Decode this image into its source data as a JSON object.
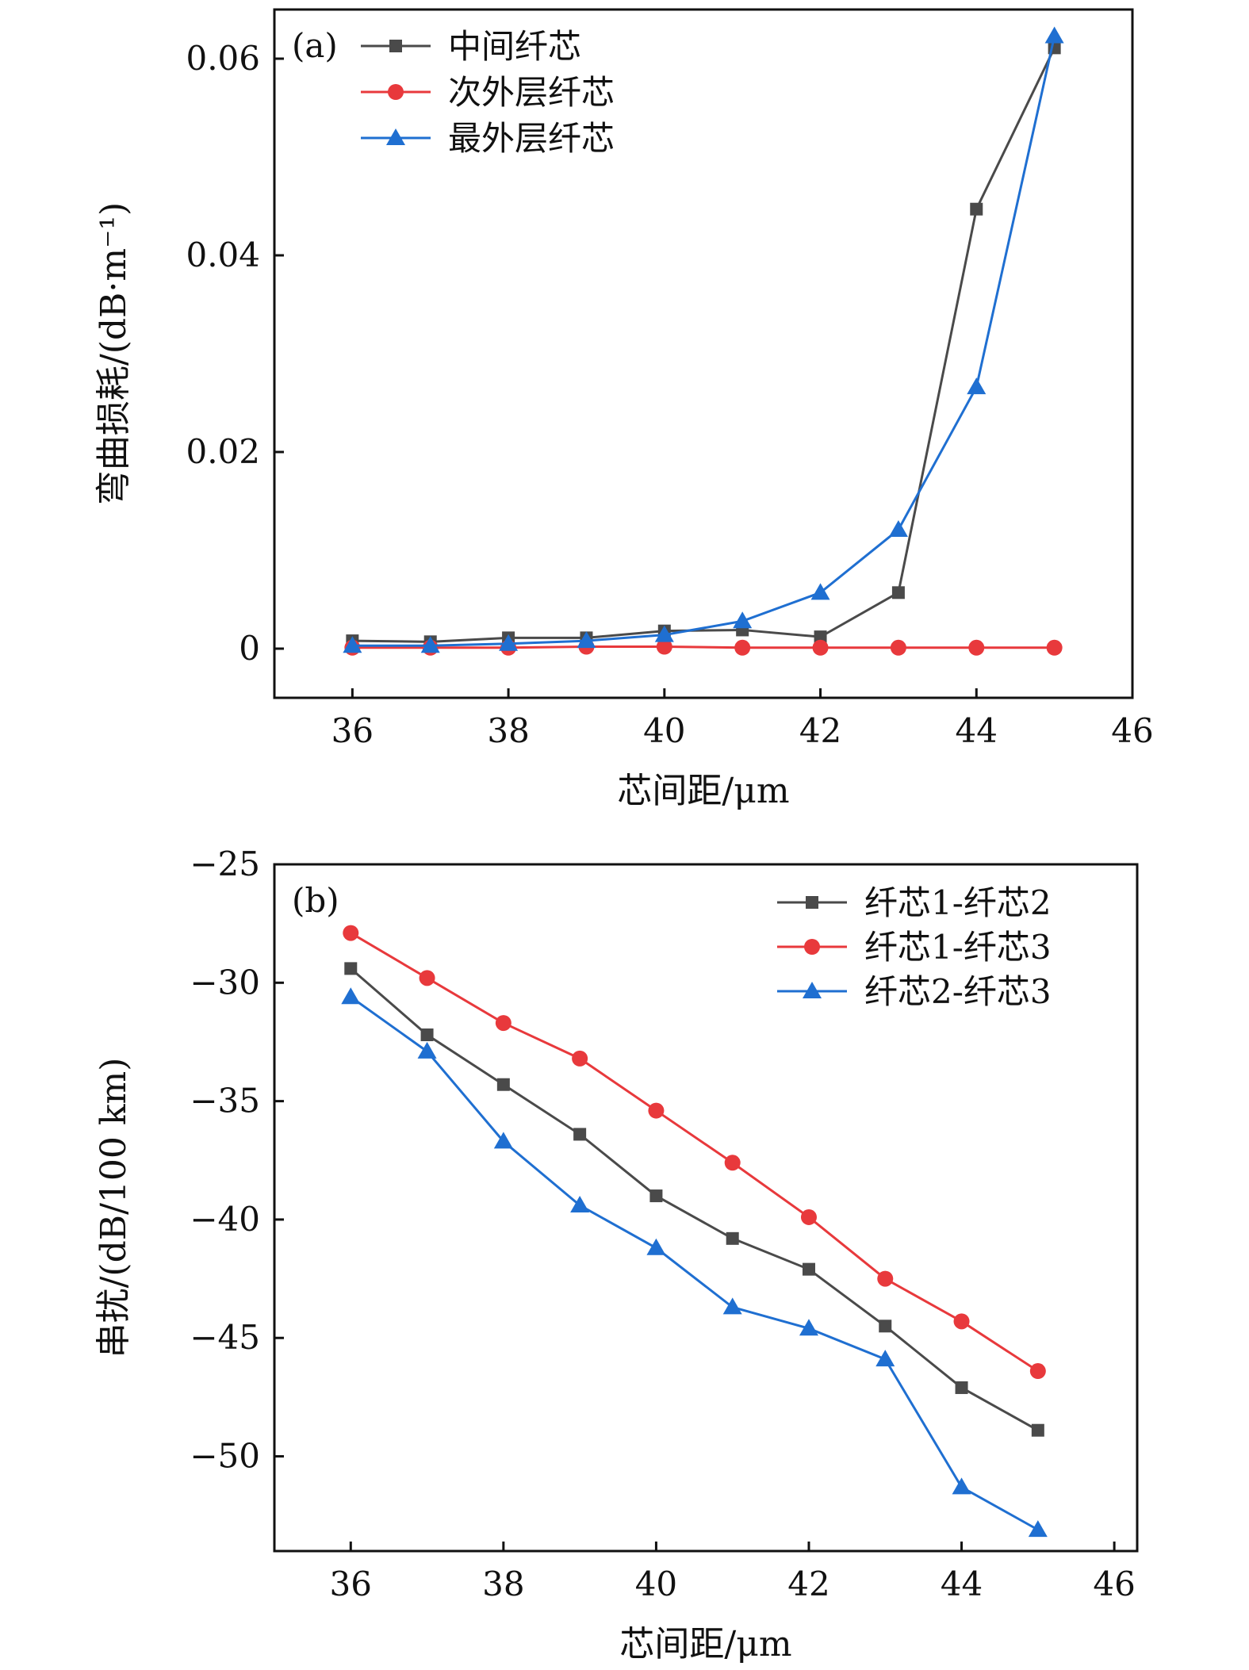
{
  "chart_data": [
    {
      "type": "line",
      "panel_label": "(a)",
      "xlabel": "芯间距/μm",
      "ylabel": "弯曲损耗/(dB·m⁻¹)",
      "xlim": [
        35,
        46
      ],
      "ylim": [
        -0.005,
        0.065
      ],
      "xticks": [
        36,
        38,
        40,
        42,
        44,
        46
      ],
      "yticks": [
        0,
        0.02,
        0.04,
        0.06
      ],
      "xtick_labels": [
        "36",
        "38",
        "40",
        "42",
        "44",
        "46"
      ],
      "ytick_labels": [
        "0",
        "0.02",
        "0.04",
        "0.06"
      ],
      "grid": false,
      "legend_position": "top-left",
      "series": [
        {
          "name": "中间纤芯",
          "color": "#4a4a4a",
          "marker": "square",
          "x": [
            36,
            37,
            38,
            39,
            40,
            41,
            42,
            43,
            44,
            45
          ],
          "y": [
            0.0008,
            0.0007,
            0.0011,
            0.0011,
            0.0018,
            0.0019,
            0.0012,
            0.0057,
            0.0447,
            0.0611
          ]
        },
        {
          "name": "次外层纤芯",
          "color": "#e8393c",
          "marker": "circle",
          "x": [
            36,
            37,
            38,
            39,
            40,
            41,
            42,
            43,
            44,
            45
          ],
          "y": [
            0.0001,
            0.0001,
            0.0001,
            0.0002,
            0.0002,
            0.0001,
            0.0001,
            0.0001,
            0.0001,
            0.0001
          ]
        },
        {
          "name": "最外层纤芯",
          "color": "#1f6fd1",
          "marker": "triangle",
          "x": [
            36,
            37,
            38,
            39,
            40,
            41,
            42,
            43,
            44,
            45
          ],
          "y": [
            0.0003,
            0.0003,
            0.0005,
            0.0008,
            0.0014,
            0.0028,
            0.0057,
            0.0121,
            0.0266,
            0.0623
          ]
        }
      ]
    },
    {
      "type": "line",
      "panel_label": "(b)",
      "xlabel": "芯间距/μm",
      "ylabel": "串扰/(dB/100 km)",
      "xlim": [
        35,
        46.3
      ],
      "ylim": [
        -54,
        -25
      ],
      "xticks": [
        36,
        38,
        40,
        42,
        44,
        46
      ],
      "yticks": [
        -25,
        -30,
        -35,
        -40,
        -45,
        -50
      ],
      "xtick_labels": [
        "36",
        "38",
        "40",
        "42",
        "44",
        "46"
      ],
      "ytick_labels": [
        "−25",
        "−30",
        "−35",
        "−40",
        "−45",
        "−50"
      ],
      "grid": false,
      "legend_position": "top-right",
      "series": [
        {
          "name": "纤芯1-纤芯2",
          "color": "#4a4a4a",
          "marker": "square",
          "x": [
            36,
            37,
            38,
            39,
            40,
            41,
            42,
            43,
            44,
            45
          ],
          "y": [
            -29.4,
            -32.2,
            -34.3,
            -36.4,
            -39.0,
            -40.8,
            -42.1,
            -44.5,
            -47.1,
            -48.9
          ]
        },
        {
          "name": "纤芯1-纤芯3",
          "color": "#e8393c",
          "marker": "circle",
          "x": [
            36,
            37,
            38,
            39,
            40,
            41,
            42,
            43,
            44,
            45
          ],
          "y": [
            -27.9,
            -29.8,
            -31.7,
            -33.2,
            -35.4,
            -37.6,
            -39.9,
            -42.5,
            -44.3,
            -46.4
          ]
        },
        {
          "name": "纤芯2-纤芯3",
          "color": "#1f6fd1",
          "marker": "triangle",
          "x": [
            36,
            37,
            38,
            39,
            40,
            41,
            42,
            43,
            44,
            45
          ],
          "y": [
            -30.6,
            -32.9,
            -36.7,
            -39.4,
            -41.2,
            -43.7,
            -44.6,
            -45.9,
            -51.3,
            -53.1
          ]
        }
      ]
    }
  ]
}
